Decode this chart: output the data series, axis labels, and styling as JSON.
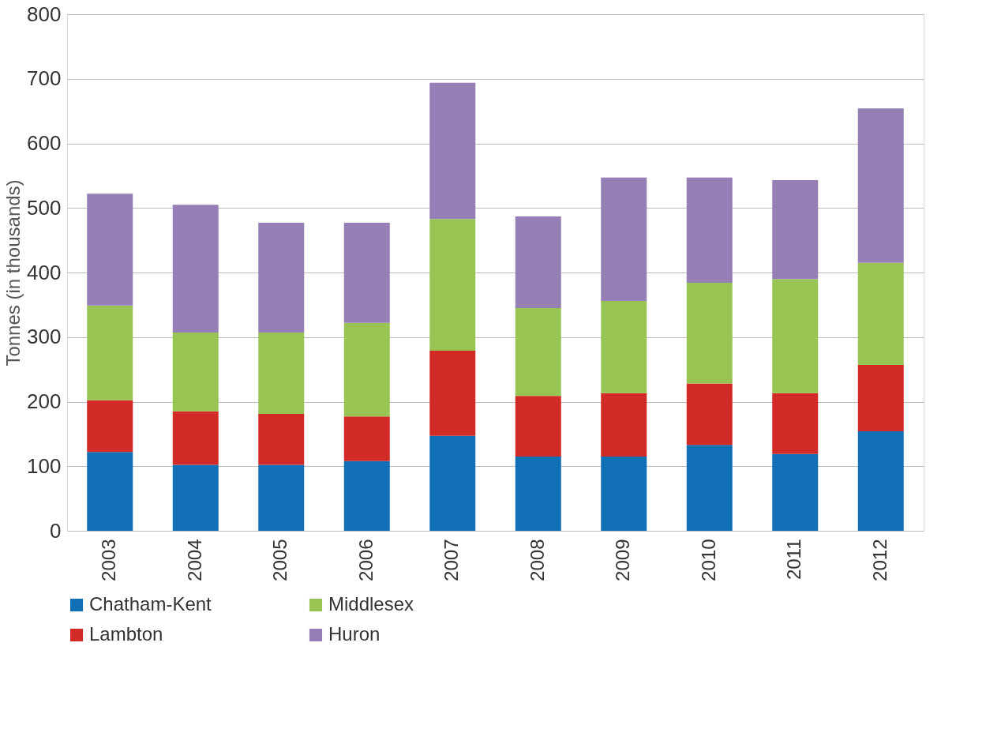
{
  "chart_data": {
    "type": "bar",
    "stacked": true,
    "ylabel": "Tonnes (in thousands)",
    "categories": [
      "2003",
      "2004",
      "2005",
      "2006",
      "2007",
      "2008",
      "2009",
      "2010",
      "2011",
      "2012"
    ],
    "series": [
      {
        "name": "Chatham-Kent",
        "color": "#1170b5",
        "values": [
          122,
          102,
          102,
          108,
          147,
          115,
          115,
          133,
          119,
          154
        ]
      },
      {
        "name": "Lambton",
        "color": "#d22a27",
        "values": [
          80,
          83,
          79,
          69,
          132,
          94,
          98,
          95,
          94,
          103
        ]
      },
      {
        "name": "Middlesex",
        "color": "#98c454",
        "values": [
          147,
          122,
          126,
          145,
          204,
          136,
          143,
          156,
          177,
          158
        ]
      },
      {
        "name": "Huron",
        "color": "#967fb7",
        "values": [
          173,
          198,
          170,
          155,
          211,
          142,
          191,
          163,
          153,
          239
        ]
      }
    ],
    "ylim": [
      0,
      800
    ],
    "yticks": [
      0,
      100,
      200,
      300,
      400,
      500,
      600,
      700,
      800
    ],
    "grid": "y",
    "legend": "bottom"
  }
}
